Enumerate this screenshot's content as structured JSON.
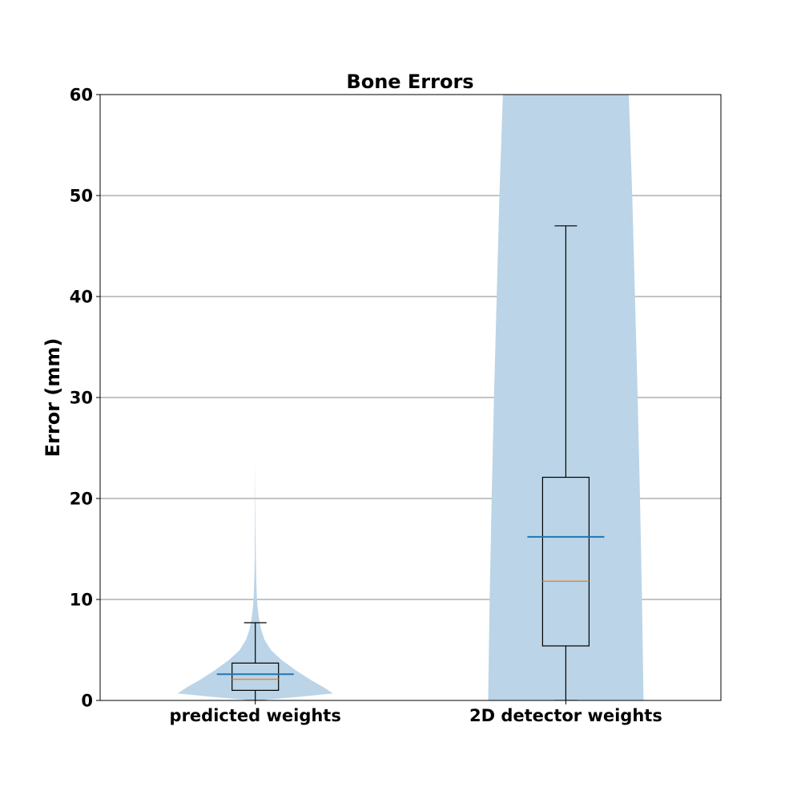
{
  "chart_data": {
    "type": "violin",
    "title": "Bone Errors",
    "xlabel": "",
    "ylabel": "Error (mm)",
    "ylim": [
      0,
      60
    ],
    "yticks": [
      0,
      10,
      20,
      30,
      40,
      50,
      60
    ],
    "grid": "horizontal",
    "categories": [
      "predicted weights",
      "2D detector weights"
    ],
    "colors": {
      "violin_fill": "#bbd4e7",
      "mean_line": "#1f77b4",
      "median_line": "#ff7f0e",
      "box": "#000000",
      "grid": "#888888"
    },
    "groups": [
      {
        "label": "predicted weights",
        "box": {
          "whisker_low": 0.0,
          "q1": 1.0,
          "median": 2.1,
          "q3": 3.7,
          "whisker_high": 7.7
        },
        "mean": 2.6,
        "violin_profile": [
          [
            0.0,
            0.02
          ],
          [
            0.35,
            0.55
          ],
          [
            0.7,
            1.0
          ],
          [
            1.3,
            0.88
          ],
          [
            2.0,
            0.72
          ],
          [
            3.0,
            0.52
          ],
          [
            4.0,
            0.34
          ],
          [
            5.0,
            0.2
          ],
          [
            6.0,
            0.12
          ],
          [
            7.0,
            0.075
          ],
          [
            8.0,
            0.05
          ],
          [
            9.0,
            0.033
          ],
          [
            10.0,
            0.022
          ],
          [
            12.0,
            0.012
          ],
          [
            14.0,
            0.007
          ],
          [
            17.0,
            0.004
          ],
          [
            20.0,
            0.002
          ],
          [
            24.0,
            0.0
          ]
        ]
      },
      {
        "label": "2D detector weights",
        "box": {
          "whisker_low": 0.0,
          "q1": 5.4,
          "median": 11.8,
          "q3": 22.1,
          "whisker_high": 47.0
        },
        "mean": 16.2,
        "violin_profile": [
          [
            0.0,
            1.0
          ],
          [
            10.0,
            0.98
          ],
          [
            20.0,
            0.955
          ],
          [
            30.0,
            0.925
          ],
          [
            40.0,
            0.89
          ],
          [
            50.0,
            0.855
          ],
          [
            60.0,
            0.81
          ]
        ]
      }
    ]
  }
}
